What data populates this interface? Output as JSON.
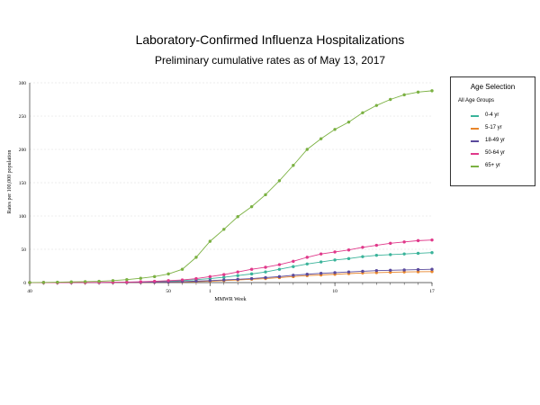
{
  "title": "Laboratory-Confirmed Influenza Hospitalizations",
  "subtitle": "Preliminary cumulative rates as of May 13, 2017",
  "legend": {
    "title": "Age Selection",
    "all_label": "All Age Groups"
  },
  "chart_data": {
    "type": "line",
    "title": "Laboratory-Confirmed Influenza Hospitalizations",
    "subtitle": "Preliminary cumulative rates as of May 13, 2017",
    "xlabel": "MMWR Week",
    "ylabel": "Rates per 100,000 population",
    "ylim": [
      0,
      300
    ],
    "yticks": [
      0,
      50,
      100,
      150,
      200,
      250,
      300
    ],
    "x_tick_labels": [
      "40",
      "50",
      "1",
      "10",
      "17"
    ],
    "x": [
      "40",
      "41",
      "42",
      "43",
      "44",
      "45",
      "46",
      "47",
      "48",
      "49",
      "50",
      "51",
      "52",
      "1",
      "2",
      "3",
      "4",
      "5",
      "6",
      "7",
      "8",
      "9",
      "10",
      "11",
      "12",
      "13",
      "14",
      "15",
      "16",
      "17"
    ],
    "grid": "horizontal",
    "legend_position": "right",
    "series": [
      {
        "name": "0-4 yr",
        "color": "#3ab39a",
        "values": [
          0,
          0,
          0,
          0.1,
          0.1,
          0.2,
          0.3,
          0.5,
          0.8,
          1.3,
          2,
          3,
          4.5,
          6,
          8,
          10.5,
          13,
          16,
          20,
          24,
          28,
          31,
          34,
          36,
          39,
          41,
          42,
          43,
          44,
          45
        ]
      },
      {
        "name": "5-17 yr",
        "color": "#e8852a",
        "values": [
          0,
          0,
          0,
          0,
          0,
          0.1,
          0.1,
          0.2,
          0.3,
          0.5,
          0.7,
          1,
          1.5,
          2,
          3,
          4,
          5,
          6,
          7.5,
          9,
          10.5,
          11.5,
          12.5,
          13.5,
          14.5,
          15,
          15.5,
          16,
          16.3,
          16.5
        ]
      },
      {
        "name": "18-49 yr",
        "color": "#5a4a9c",
        "values": [
          0,
          0,
          0,
          0,
          0.1,
          0.1,
          0.2,
          0.3,
          0.5,
          0.7,
          1,
          1.5,
          2.2,
          3,
          4,
          5,
          6,
          7.5,
          9,
          11,
          12.5,
          14,
          15,
          16,
          17,
          18,
          18.5,
          19,
          19.5,
          20
        ]
      },
      {
        "name": "50-64 yr",
        "color": "#e0388a",
        "values": [
          0,
          0,
          0,
          0.1,
          0.2,
          0.3,
          0.5,
          0.8,
          1.2,
          2,
          3,
          4,
          6,
          9,
          12,
          16,
          20,
          23,
          27,
          32,
          38,
          43,
          46,
          49,
          53,
          56,
          59,
          61,
          63,
          64
        ]
      },
      {
        "name": "65+ yr",
        "color": "#7bb142",
        "values": [
          0.1,
          0.3,
          0.6,
          1,
          1.5,
          2,
          3,
          4.5,
          6.5,
          9,
          13,
          20,
          38,
          62,
          80,
          99,
          114,
          132,
          153,
          176,
          200,
          216,
          230,
          241,
          255,
          266,
          275,
          282,
          286,
          288
        ]
      }
    ]
  }
}
